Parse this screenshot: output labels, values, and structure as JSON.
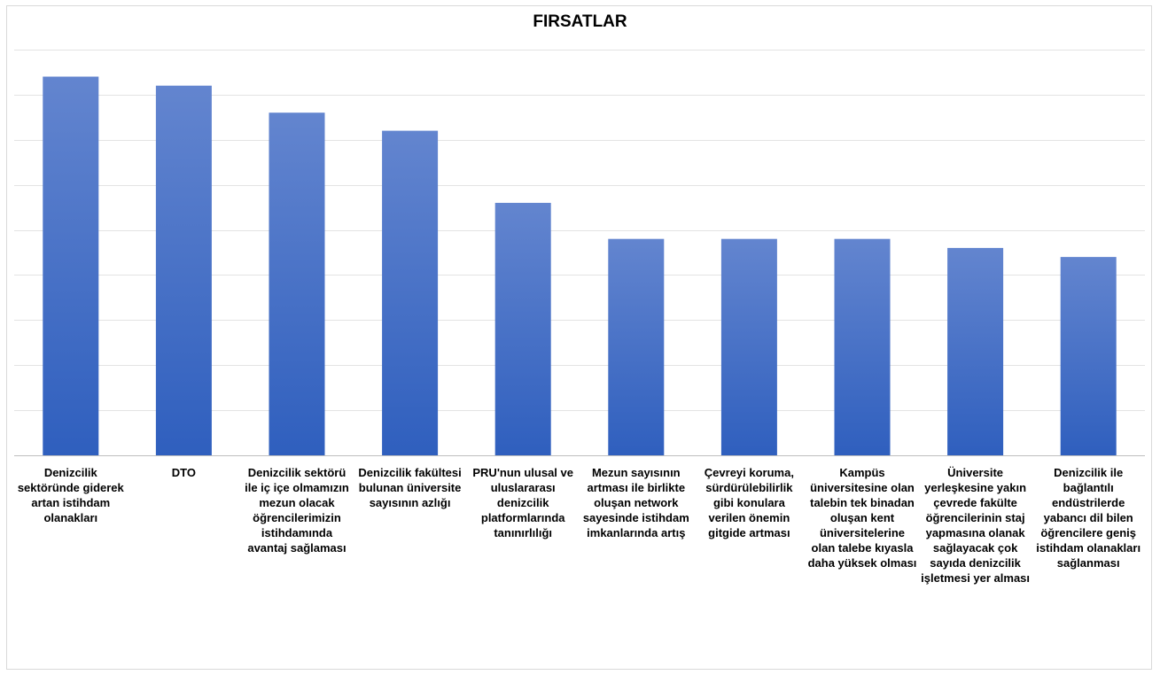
{
  "chart_data": {
    "type": "bar",
    "title": "FIRSATLAR",
    "xlabel": "",
    "ylabel": "",
    "ylim": [
      0,
      9
    ],
    "grid": true,
    "legend": "none",
    "categories": [
      "Denizcilik sektöründe giderek artan istihdam olanakları",
      "DTO",
      "Denizcilik sektörü ile iç içe olmamızın mezun olacak öğrencilerimizin istihdamında avantaj sağlaması",
      "Denizcilik fakültesi bulunan üniversite sayısının azlığı",
      "PRU'nun ulusal ve uluslararası denizcilik platformlarında tanınırlılığı",
      "Mezun sayısının artması ile birlikte oluşan network sayesinde istihdam imkanlarında artış",
      "Çevreyi koruma, sürdürülebilirlik gibi konulara verilen önemin gitgide artması",
      "Kampüs üniversitesine olan talebin tek binadan oluşan kent üniversitelerine olan talebe kıyasla daha yüksek olması",
      "Üniversite yerleşkesine yakın çevrede fakülte öğrencilerinin staj yapmasına olanak sağlayacak çok sayıda denizcilik işletmesi yer alması",
      "Denizcilik ile bağlantılı endüstrilerde yabancı dil bilen öğrencilere geniş istihdam olanakları sağlanması"
    ],
    "values": [
      8.4,
      8.2,
      7.6,
      7.2,
      5.6,
      4.8,
      4.8,
      4.8,
      4.6,
      4.4
    ],
    "bar_color_top": "#6385cf",
    "bar_color_bottom": "#2f5fbe"
  }
}
